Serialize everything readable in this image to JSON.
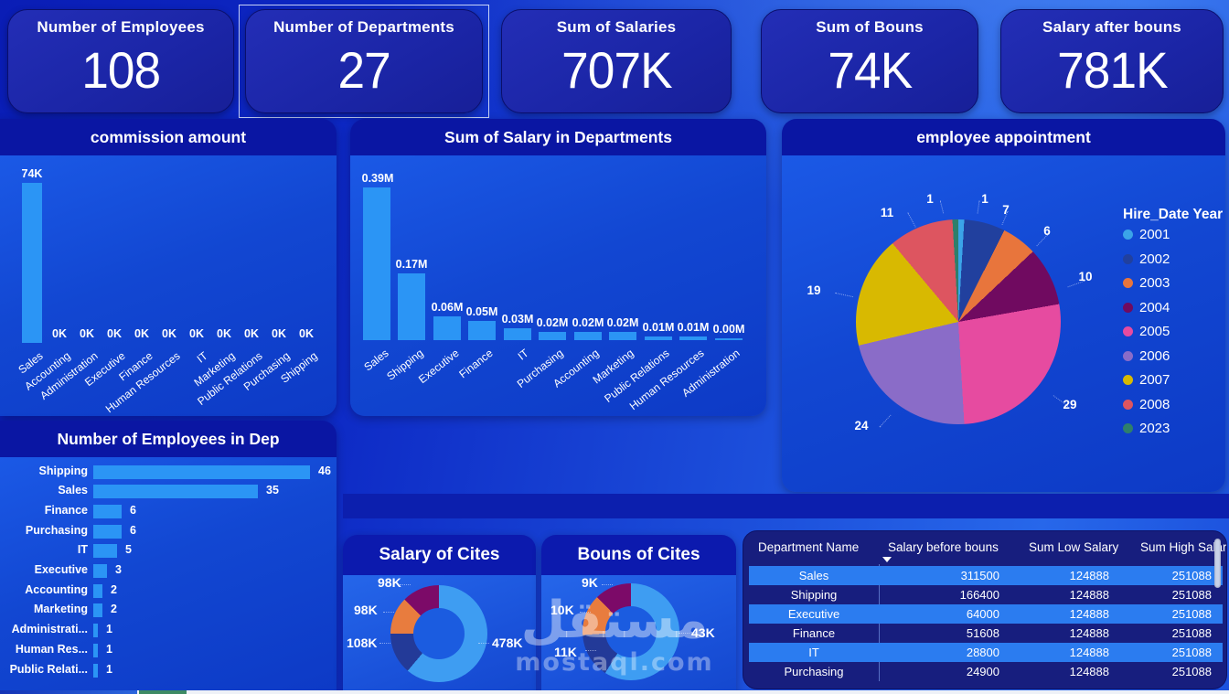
{
  "kpis": {
    "cards": [
      {
        "label": "Number of Employees",
        "value": "108"
      },
      {
        "label": "Number of Departments",
        "value": "27"
      },
      {
        "label": "Sum of Salaries",
        "value": "707K"
      },
      {
        "label": "Sum of Bouns",
        "value": "74K"
      },
      {
        "label": "Salary after bouns",
        "value": "781K"
      }
    ],
    "selected_index": 1
  },
  "colors": {
    "bar": "#2b95f5",
    "panel_header": "#0a16a3",
    "band": "#0c1fae",
    "table_row_alt": "#2b7cf0",
    "table_container": "#171e7e",
    "donut_palette": [
      "#3e9df2",
      "#233a98",
      "#e87c3e",
      "#7c0a68"
    ]
  },
  "chart_data": [
    {
      "type": "bar",
      "title": "commission amount",
      "categories": [
        "Sales",
        "Accounting",
        "Administration",
        "Executive",
        "Finance",
        "Human Resources",
        "IT",
        "Marketing",
        "Public Relations",
        "Purchasing",
        "Shipping"
      ],
      "values": [
        74,
        0,
        0,
        0,
        0,
        0,
        0,
        0,
        0,
        0,
        0
      ],
      "value_labels": [
        "74K",
        "0K",
        "0K",
        "0K",
        "0K",
        "0K",
        "0K",
        "0K",
        "0K",
        "0K",
        "0K"
      ],
      "unit": "K",
      "ylim": [
        0,
        74
      ],
      "grid": false,
      "legend": "none"
    },
    {
      "type": "bar",
      "title": "Sum of Salary in Departments",
      "categories": [
        "Sales",
        "Shipping",
        "Executive",
        "Finance",
        "IT",
        "Purchasing",
        "Accounting",
        "Marketing",
        "Public Relations",
        "Human Resources",
        "Administration"
      ],
      "values": [
        0.39,
        0.17,
        0.06,
        0.05,
        0.03,
        0.02,
        0.02,
        0.02,
        0.01,
        0.01,
        0.0
      ],
      "value_labels": [
        "0.39M",
        "0.17M",
        "0.06M",
        "0.05M",
        "0.03M",
        "0.02M",
        "0.02M",
        "0.02M",
        "0.01M",
        "0.01M",
        "0.00M"
      ],
      "unit": "M",
      "ylim": [
        0,
        0.39
      ],
      "grid": false,
      "legend": "none"
    },
    {
      "type": "pie",
      "title": "employee appointment",
      "legend_title": "Hire_Date Year",
      "legend_position": "right",
      "categories": [
        "2001",
        "2002",
        "2003",
        "2004",
        "2005",
        "2006",
        "2007",
        "2008",
        "2023"
      ],
      "values": [
        1,
        7,
        6,
        10,
        29,
        24,
        19,
        11,
        1
      ],
      "colors": [
        "#3ba4e8",
        "#21409e",
        "#e8753c",
        "#700a60",
        "#e64ba0",
        "#8a6cc8",
        "#d8b901",
        "#dd5560",
        "#2e7f6b"
      ]
    },
    {
      "type": "bar-horizontal",
      "title": "Number of Employees in Dep",
      "categories": [
        "Shipping",
        "Sales",
        "Finance",
        "Purchasing",
        "IT",
        "Executive",
        "Accounting",
        "Marketing",
        "Administrati...",
        "Human Res...",
        "Public Relati..."
      ],
      "values": [
        46,
        35,
        6,
        6,
        5,
        3,
        2,
        2,
        1,
        1,
        1
      ],
      "xlim": [
        0,
        46
      ],
      "grid": false,
      "legend": "none"
    },
    {
      "type": "donut",
      "title": "Salary of Cites",
      "slices": [
        {
          "label": "478K",
          "value": 478
        },
        {
          "label": "108K",
          "value": 108
        },
        {
          "label": "98K",
          "value": 98
        },
        {
          "label": "98K",
          "value": 98
        }
      ]
    },
    {
      "type": "donut",
      "title": "Bouns of Cites",
      "slices": [
        {
          "label": "43K",
          "value": 43
        },
        {
          "label": "11K",
          "value": 11
        },
        {
          "label": "10K",
          "value": 10
        },
        {
          "label": "9K",
          "value": 9
        }
      ]
    },
    {
      "type": "table",
      "columns": [
        "Department Name",
        "Salary before bouns",
        "Sum Low Salary",
        "Sum High Salary"
      ],
      "sorted_column": "Salary before bouns",
      "rows": [
        [
          "Sales",
          "311500",
          "124888",
          "251088"
        ],
        [
          "Shipping",
          "166400",
          "124888",
          "251088"
        ],
        [
          "Executive",
          "64000",
          "124888",
          "251088"
        ],
        [
          "Finance",
          "51608",
          "124888",
          "251088"
        ],
        [
          "IT",
          "28800",
          "124888",
          "251088"
        ],
        [
          "Purchasing",
          "24900",
          "124888",
          "251088"
        ]
      ]
    }
  ],
  "watermark": {
    "line1": "مستقل",
    "line2": "mostaql.com"
  }
}
